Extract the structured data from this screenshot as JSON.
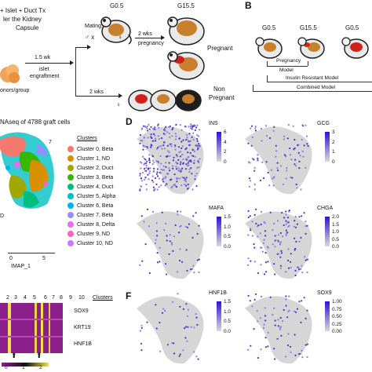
{
  "panelA": {
    "title_lines": [
      "+ Islet + Duct Tx",
      "ler the Kidney",
      "Capsule"
    ],
    "engraft": [
      "1.5 wk",
      "islet",
      "engraftment"
    ],
    "donors": "onors/group",
    "mating": "Mating",
    "g05": "G0.5",
    "g155": "G15.5",
    "two_wks_preg": [
      "2 wks",
      "pregnancy"
    ],
    "pregnant": "Pregnant",
    "two_wks": "2 wks",
    "non_pregnant": [
      "Non",
      "Pregnant"
    ]
  },
  "panelB": {
    "letter": "B",
    "g05": "G0.5",
    "g155": "G15.5",
    "g05b": "G0.5",
    "pregnancy_model": [
      "Pregnancy",
      "Model"
    ],
    "ir_model": "Insulin Resistant Model",
    "combined_model": "Combined Model"
  },
  "panelC": {
    "title": "NAseq of 4788 graft cells",
    "clusters_header": "Clusters",
    "clusters": [
      {
        "label": "Cluster 0, Beta",
        "color": "#f4786c"
      },
      {
        "label": "Cluster 1, ND",
        "color": "#d89000"
      },
      {
        "label": "Cluster 2, Duct",
        "color": "#a3a500"
      },
      {
        "label": "Cluster 3, Beta",
        "color": "#39b600"
      },
      {
        "label": "Cluster 4, Duct",
        "color": "#00bf7d"
      },
      {
        "label": "Cluster 5, Alpha",
        "color": "#00bfc4"
      },
      {
        "label": "Cluster 6, Beta",
        "color": "#00b0f6"
      },
      {
        "label": "Cluster 7, Beta",
        "color": "#9590ff"
      },
      {
        "label": "Cluster 8, Delta",
        "color": "#e76bf3"
      },
      {
        "label": "Cluster 9, ND",
        "color": "#ff62bc"
      },
      {
        "label": "Cluster 10, ND",
        "color": "#c77cff"
      }
    ],
    "cluster_num": "7",
    "d_label": "D",
    "xaxis": "IMAP_1",
    "xtick0": "0",
    "xtick5": "5"
  },
  "panelD": {
    "letter": "D",
    "genes": [
      {
        "name": "INS",
        "ticks": [
          "6",
          "4",
          "2",
          "0"
        ]
      },
      {
        "name": "GCG",
        "ticks": [
          "3",
          "2",
          "1",
          "0"
        ]
      },
      {
        "name": "MAFA",
        "ticks": [
          "1.5",
          "1.0",
          "0.5",
          "0.0"
        ]
      },
      {
        "name": "CHGA",
        "ticks": [
          "2.0",
          "1.5",
          "1.0",
          "0.5",
          "0.0"
        ]
      }
    ]
  },
  "panelE": {
    "col_nums": [
      "2",
      "3",
      "4",
      "5",
      "6",
      "7",
      "8",
      "9",
      "10"
    ],
    "clusters_label": "Clusters",
    "genes": [
      "SOX9",
      "KRT19",
      "HNF1B"
    ],
    "scale": [
      "0",
      "1",
      "2"
    ]
  },
  "panelF": {
    "letter": "F",
    "genes": [
      {
        "name": "HNF1B",
        "ticks": [
          "1.5",
          "1.0",
          "0.5",
          "0.0"
        ]
      },
      {
        "name": "SOX9",
        "ticks": [
          "1.00",
          "0.75",
          "0.50",
          "0.25",
          "0.00"
        ]
      }
    ]
  }
}
